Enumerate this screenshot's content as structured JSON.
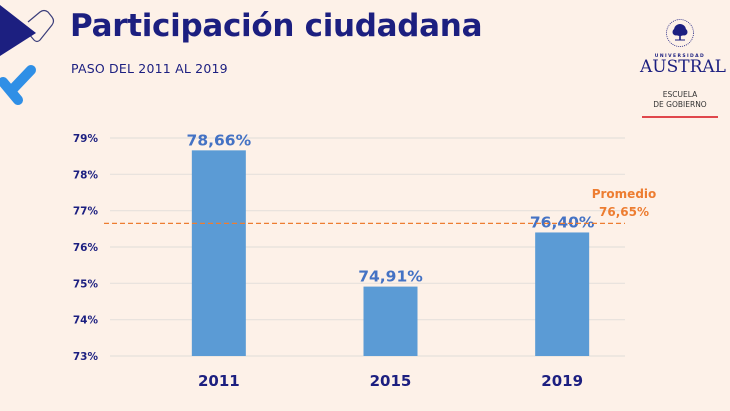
{
  "header": {
    "title": "Participación ciudadana",
    "subtitle": "PASO DEL 2011 AL 2019"
  },
  "logo": {
    "university_small": "UNIVERSIDAD",
    "university_name": "AUSTRAL",
    "school_line1": "ESCUELA",
    "school_line2": "DE GOBIERNO"
  },
  "colors": {
    "background": "#fdf1e8",
    "title": "#1c1f80",
    "bar": "#5b9bd5",
    "data_label": "#4472c4",
    "average": "#ed7d31",
    "gridline": "#e6e1dc",
    "logo_accent": "#e0474c",
    "deco_check": "#2f8fe6"
  },
  "chart_data": {
    "type": "bar",
    "title": "Participación ciudadana",
    "subtitle": "PASO DEL 2011 AL 2019",
    "xlabel": "",
    "ylabel": "",
    "categories": [
      "2011",
      "2015",
      "2019"
    ],
    "values": [
      78.66,
      74.91,
      76.4
    ],
    "data_labels": [
      "78,66%",
      "74,91%",
      "76,40%"
    ],
    "ylim": [
      73,
      79
    ],
    "yticks": [
      73,
      74,
      75,
      76,
      77,
      78,
      79
    ],
    "ytick_labels": [
      "73%",
      "74%",
      "75%",
      "76%",
      "77%",
      "78%",
      "79%"
    ],
    "grid": true,
    "legend": "none",
    "reference_line": {
      "name": "Promedio",
      "value": 76.65,
      "label_line1": "Promedio",
      "label_line2": "76,65%",
      "style": "dashed",
      "label_position": "right"
    }
  }
}
